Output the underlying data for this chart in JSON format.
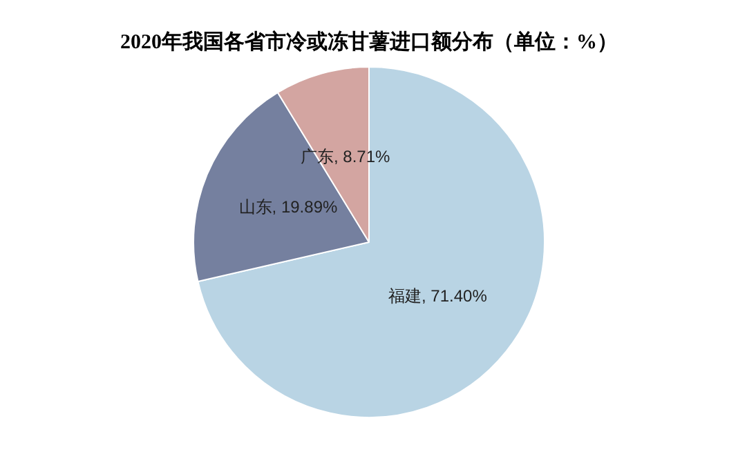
{
  "chart_data": {
    "type": "pie",
    "title": "2020年我国各省市冷或冻甘薯进口额分布（单位：%）",
    "categories": [
      "福建",
      "山东",
      "广东"
    ],
    "values": [
      71.4,
      19.89,
      8.71
    ],
    "colors": [
      "#b9d4e4",
      "#75809f",
      "#d3a5a1"
    ],
    "value_labels": [
      "71.40%",
      "19.89%",
      "8.71%"
    ],
    "legend": false
  }
}
